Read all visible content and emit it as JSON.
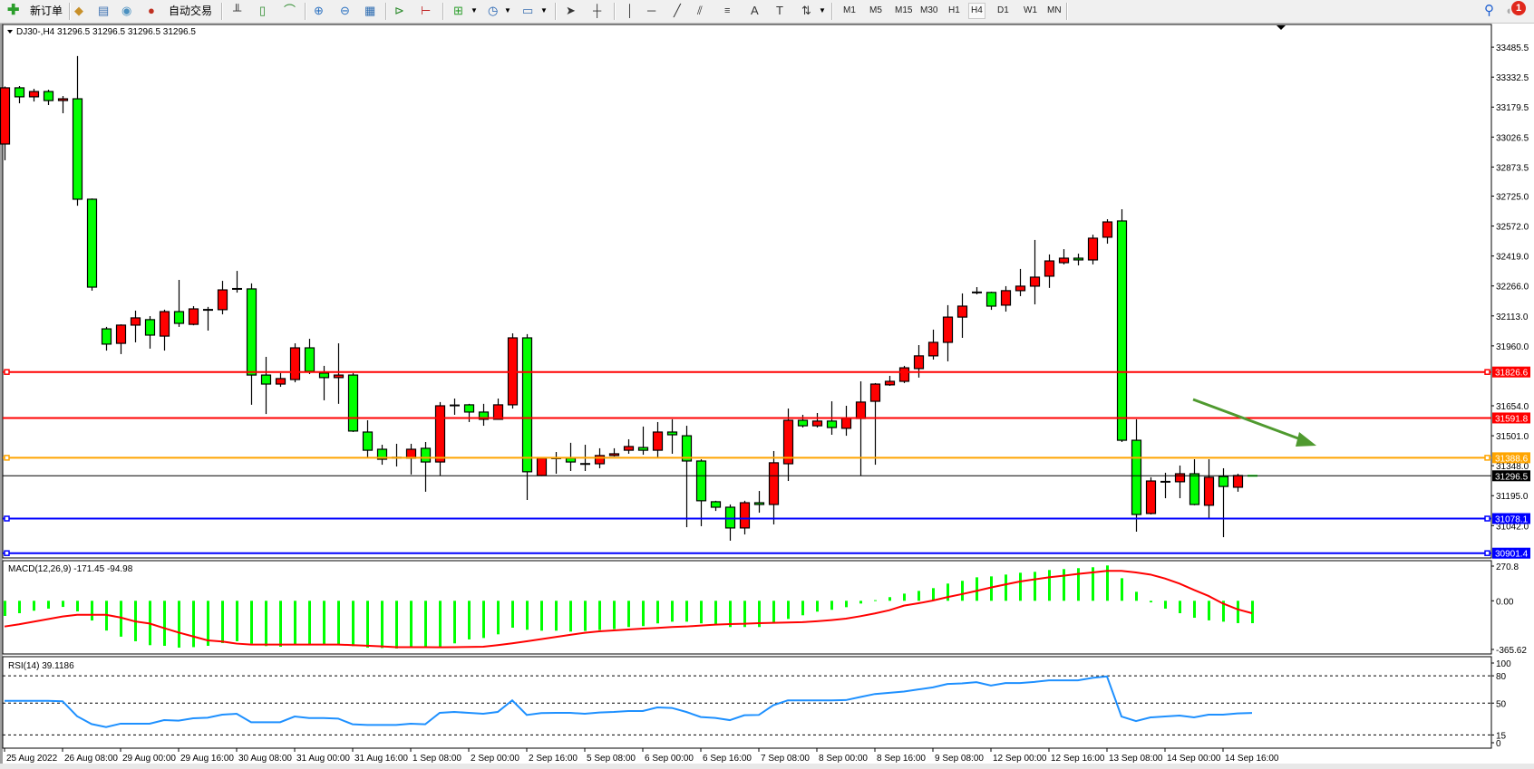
{
  "toolbar": {
    "new_order_label": "新订单",
    "auto_trading_label": "自动交易",
    "timeframes": [
      "M1",
      "M5",
      "M15",
      "M30",
      "H1",
      "H4",
      "D1",
      "W1",
      "MN"
    ],
    "active_timeframe": "H4",
    "notification_count": "1",
    "icons": [
      "new-order-icon",
      "book-icon",
      "terminal-icon",
      "signal-icon",
      "auto-trading-icon",
      "bar-chart-icon",
      "candlestick-icon",
      "line-chart-icon",
      "zoom-in-icon",
      "zoom-out-icon",
      "tile-windows-icon",
      "autoscroll-icon",
      "chart-shift-icon",
      "indicators-icon",
      "periods-icon",
      "templates-icon",
      "cursor-icon",
      "crosshair-icon",
      "vertical-line-icon",
      "horizontal-line-icon",
      "trendline-icon",
      "equidistant-channel-icon",
      "fibonacci-icon",
      "text-icon",
      "text-label-icon",
      "arrows-icon",
      "search-icon",
      "notification-icon"
    ]
  },
  "chart": {
    "header": "DJ30-,H4  31296.5 31296.5 31296.5 31296.5",
    "colors": {
      "bull": "#ff0000",
      "bear": "#00ff00",
      "macd_hist": "#00ff00",
      "macd_signal": "#ff0000",
      "rsi": "#1e90ff",
      "arrow": "#4f9a2f"
    },
    "price_axis": [
      "33485.5",
      "33332.5",
      "33179.5",
      "33026.5",
      "32873.5",
      "32725.0",
      "32572.0",
      "32419.0",
      "32266.0",
      "32113.0",
      "31960.0",
      "31654.0",
      "31501.0",
      "31348.0",
      "31195.0",
      "31042.0"
    ],
    "levels": [
      {
        "price": "31826.6",
        "color": "#ff0000",
        "markers": true
      },
      {
        "price": "31591.8",
        "color": "#ff0000",
        "markers": false
      },
      {
        "price": "31388.6",
        "color": "#ffa500",
        "markers": true
      },
      {
        "price": "31296.5",
        "color": "#000000",
        "markers": false,
        "bid": true
      },
      {
        "price": "31078.1",
        "color": "#0000ff",
        "markers": true
      },
      {
        "price": "30901.4",
        "color": "#0000ff",
        "markers": true
      }
    ],
    "time_axis": [
      "25 Aug 2022",
      "26 Aug 08:00",
      "29 Aug 00:00",
      "29 Aug 16:00",
      "30 Aug 08:00",
      "31 Aug 00:00",
      "31 Aug 16:00",
      "1 Sep 08:00",
      "2 Sep 00:00",
      "2 Sep 16:00",
      "5 Sep 08:00",
      "6 Sep 00:00",
      "6 Sep 16:00",
      "7 Sep 08:00",
      "8 Sep 00:00",
      "8 Sep 16:00",
      "9 Sep 08:00",
      "12 Sep 00:00",
      "12 Sep 16:00",
      "13 Sep 08:00",
      "14 Sep 00:00",
      "14 Sep 16:00"
    ],
    "ohlc": [
      [
        32991,
        33285,
        32908,
        33278
      ],
      [
        33278,
        33287,
        33199,
        33232
      ],
      [
        33232,
        33273,
        33208,
        33259
      ],
      [
        33259,
        33268,
        33190,
        33213
      ],
      [
        33213,
        33236,
        33148,
        33222
      ],
      [
        33222,
        33440,
        32676,
        32709
      ],
      [
        32709,
        32713,
        32242,
        32260
      ],
      [
        32047,
        32057,
        31936,
        31969
      ],
      [
        31973,
        32070,
        31918,
        32066
      ],
      [
        32066,
        32140,
        31978,
        32103
      ],
      [
        32094,
        32112,
        31946,
        32015
      ],
      [
        32010,
        32145,
        31936,
        32135
      ],
      [
        32135,
        32297,
        32057,
        32075
      ],
      [
        32070,
        32163,
        32065,
        32149
      ],
      [
        32145,
        32159,
        32038,
        32144
      ],
      [
        32145,
        32292,
        32121,
        32246
      ],
      [
        32250,
        32343,
        32232,
        32251
      ],
      [
        32251,
        32279,
        31659,
        31811
      ],
      [
        31811,
        31904,
        31612,
        31765
      ],
      [
        31765,
        31821,
        31751,
        31793
      ],
      [
        31788,
        31973,
        31774,
        31950
      ],
      [
        31950,
        31996,
        31816,
        31830
      ],
      [
        31821,
        31858,
        31682,
        31798
      ],
      [
        31798,
        31973,
        31664,
        31811
      ],
      [
        31811,
        31821,
        31520,
        31525
      ],
      [
        31520,
        31580,
        31390,
        31427
      ],
      [
        31432,
        31455,
        31353,
        31381
      ],
      [
        31390,
        31460,
        31344,
        31389
      ],
      [
        31386,
        31460,
        31303,
        31432
      ],
      [
        31437,
        31469,
        31215,
        31367
      ],
      [
        31367,
        31673,
        31298,
        31654
      ],
      [
        31654,
        31691,
        31608,
        31656
      ],
      [
        31659,
        31664,
        31571,
        31622
      ],
      [
        31622,
        31664,
        31552,
        31585
      ],
      [
        31585,
        31691,
        31583,
        31659
      ],
      [
        31659,
        32024,
        31640,
        32001
      ],
      [
        32001,
        32020,
        31173,
        31317
      ],
      [
        31298,
        31390,
        31295,
        31386
      ],
      [
        31388,
        31418,
        31307,
        31386
      ],
      [
        31386,
        31465,
        31321,
        31367
      ],
      [
        31358,
        31455,
        31321,
        31357
      ],
      [
        31358,
        31437,
        31335,
        31400
      ],
      [
        31400,
        31437,
        31395,
        31409
      ],
      [
        31427,
        31483,
        31409,
        31446
      ],
      [
        31441,
        31548,
        31404,
        31427
      ],
      [
        31427,
        31571,
        31390,
        31520
      ],
      [
        31520,
        31585,
        31409,
        31506
      ],
      [
        31501,
        31552,
        31034,
        31372
      ],
      [
        31372,
        31381,
        31039,
        31169
      ],
      [
        31164,
        31169,
        31117,
        31136
      ],
      [
        31136,
        31150,
        30965,
        31030
      ],
      [
        31030,
        31169,
        30997,
        31159
      ],
      [
        31159,
        31219,
        31108,
        31150
      ],
      [
        31150,
        31423,
        31048,
        31363
      ],
      [
        31358,
        31640,
        31270,
        31580
      ],
      [
        31580,
        31608,
        31543,
        31552
      ],
      [
        31552,
        31617,
        31543,
        31576
      ],
      [
        31576,
        31677,
        31506,
        31543
      ],
      [
        31539,
        31654,
        31501,
        31589
      ],
      [
        31589,
        31779,
        31298,
        31673
      ],
      [
        31677,
        31770,
        31353,
        31765
      ],
      [
        31761,
        31807,
        31756,
        31779
      ],
      [
        31779,
        31858,
        31770,
        31848
      ],
      [
        31844,
        31964,
        31798,
        31909
      ],
      [
        31909,
        32043,
        31890,
        31978
      ],
      [
        31978,
        32168,
        31881,
        32107
      ],
      [
        32107,
        32228,
        32001,
        32163
      ],
      [
        32231,
        32260,
        32223,
        32233
      ],
      [
        32233,
        32237,
        32144,
        32163
      ],
      [
        32168,
        32265,
        32135,
        32242
      ],
      [
        32242,
        32353,
        32214,
        32265
      ],
      [
        32265,
        32501,
        32172,
        32311
      ],
      [
        32316,
        32427,
        32256,
        32394
      ],
      [
        32385,
        32454,
        32376,
        32408
      ],
      [
        32408,
        32431,
        32371,
        32399
      ],
      [
        32399,
        32528,
        32376,
        32510
      ],
      [
        32515,
        32607,
        32482,
        32593
      ],
      [
        32598,
        32658,
        31469,
        31478
      ],
      [
        31478,
        31585,
        31011,
        31099
      ],
      [
        31104,
        31289,
        31099,
        31270
      ],
      [
        31266,
        31312,
        31182,
        31266
      ],
      [
        31266,
        31349,
        31182,
        31307
      ],
      [
        31307,
        31381,
        31146,
        31150
      ],
      [
        31146,
        31381,
        31080,
        31289
      ],
      [
        31293,
        31335,
        30983,
        31242
      ],
      [
        31238,
        31307,
        31215,
        31298
      ],
      [
        31296.5,
        31296.5,
        31296.5,
        31296.5
      ]
    ]
  },
  "macd": {
    "title": "MACD(12,26,9) -171.45 -94.98",
    "axis": [
      "270.8",
      "0.00",
      "-365.62"
    ],
    "histogram": [
      -116,
      -95,
      -76,
      -60,
      -47,
      -81,
      -151,
      -228,
      -275,
      -310,
      -340,
      -345,
      -359,
      -355,
      -345,
      -324,
      -310,
      -328,
      -347,
      -352,
      -331,
      -331,
      -331,
      -335,
      -347,
      -359,
      -362,
      -365.6,
      -360,
      -358,
      -352,
      -326,
      -296,
      -285,
      -257,
      -206,
      -222,
      -229,
      -229,
      -236,
      -231,
      -224,
      -217,
      -201,
      -194,
      -173,
      -160,
      -160,
      -173,
      -180,
      -201,
      -201,
      -201,
      -167,
      -139,
      -111,
      -83,
      -69,
      -49,
      -21,
      5,
      28,
      55,
      76,
      97,
      132,
      153,
      180,
      187,
      201,
      215,
      222,
      236,
      243,
      250,
      257,
      270.8,
      173,
      69,
      -12,
      -60,
      -95,
      -130,
      -150,
      -160,
      -171,
      -171.45
    ],
    "signal": [
      -197,
      -180,
      -160,
      -140,
      -120,
      -107,
      -107,
      -107,
      -128,
      -158,
      -174,
      -209,
      -243,
      -273,
      -303,
      -312,
      -328,
      -335,
      -335,
      -335,
      -335,
      -335,
      -335,
      -335,
      -340,
      -344,
      -349,
      -355,
      -355,
      -355,
      -356,
      -355,
      -354,
      -352,
      -340,
      -326,
      -310,
      -294,
      -277,
      -261,
      -245,
      -234,
      -227,
      -220,
      -213,
      -208,
      -201,
      -197,
      -190,
      -183,
      -178,
      -176,
      -171,
      -169,
      -166,
      -164,
      -157,
      -148,
      -137,
      -118,
      -97,
      -72,
      -37,
      -19,
      2,
      28,
      51,
      76,
      102,
      125,
      148,
      164,
      180,
      192,
      206,
      217,
      229,
      229,
      217,
      201,
      171,
      132,
      83,
      37,
      -21,
      -65,
      -94.98
    ]
  },
  "rsi": {
    "title": "RSI(14) 39.1186",
    "axis": [
      "100",
      "80",
      "50",
      "15",
      "0"
    ],
    "levels": [
      80,
      50,
      15
    ],
    "values": [
      52.5,
      52.5,
      52.5,
      52.5,
      52,
      35.6,
      27,
      23.7,
      27.4,
      27.4,
      27.4,
      31.3,
      30.7,
      33.3,
      34,
      37.3,
      38.3,
      29,
      29,
      29,
      35.3,
      33.6,
      33.6,
      33,
      26.7,
      26,
      26,
      26,
      27.4,
      26.7,
      39.3,
      40.3,
      39.3,
      38.3,
      40.3,
      53,
      37,
      39,
      39.3,
      39.3,
      38.3,
      39.7,
      40.3,
      41.3,
      41.3,
      45.3,
      44.7,
      40.3,
      34.7,
      33.7,
      31.3,
      36.7,
      37,
      47.7,
      53,
      53,
      53,
      53,
      53.3,
      56.7,
      60,
      61.3,
      62.7,
      65,
      67.3,
      71,
      71.7,
      73,
      69.3,
      72,
      72,
      73.3,
      75,
      75,
      75,
      77.7,
      79.3,
      35.3,
      30.3,
      34.3,
      35.3,
      36.3,
      34.3,
      37.3,
      37.3,
      38.7,
      39.1186
    ]
  }
}
